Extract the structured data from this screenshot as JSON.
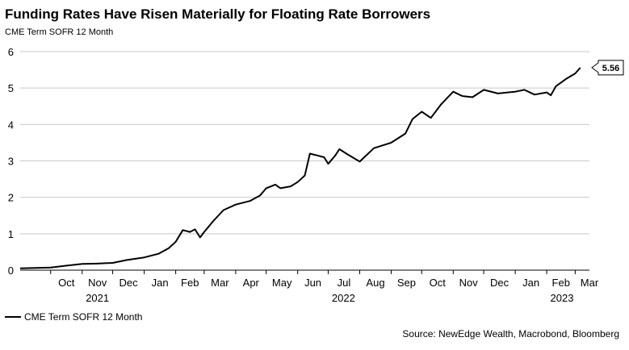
{
  "title": "Funding Rates Have Risen Materially for Floating Rate Borrowers",
  "subtitle": "CME Term SOFR 12 Month",
  "legend": {
    "label": "CME Term SOFR 12 Month"
  },
  "source": "Source: NewEdge Wealth, Macrobond, Bloomberg",
  "chart_data": {
    "type": "line",
    "title": "Funding Rates Have Risen Materially for Floating Rate Borrowers",
    "ylabel": "",
    "xlabel": "",
    "ylim": [
      0,
      6
    ],
    "yticks": [
      "0",
      "1",
      "2",
      "3",
      "4",
      "5",
      "6"
    ],
    "xlim": [
      "2021-09-01",
      "2023-03-15"
    ],
    "xticks": [
      {
        "label": "Oct",
        "date": "2021-10-01"
      },
      {
        "label": "Nov",
        "date": "2021-11-01"
      },
      {
        "label": "Dec",
        "date": "2021-12-01"
      },
      {
        "label": "Jan",
        "date": "2022-01-01"
      },
      {
        "label": "Feb",
        "date": "2022-02-01"
      },
      {
        "label": "Mar",
        "date": "2022-03-01"
      },
      {
        "label": "Apr",
        "date": "2022-04-01"
      },
      {
        "label": "May",
        "date": "2022-05-01"
      },
      {
        "label": "Jun",
        "date": "2022-06-01"
      },
      {
        "label": "Jul",
        "date": "2022-07-01"
      },
      {
        "label": "Aug",
        "date": "2022-08-01"
      },
      {
        "label": "Sep",
        "date": "2022-09-01"
      },
      {
        "label": "Oct",
        "date": "2022-10-01"
      },
      {
        "label": "Nov",
        "date": "2022-11-01"
      },
      {
        "label": "Dec",
        "date": "2022-12-01"
      },
      {
        "label": "Jan",
        "date": "2023-01-01"
      },
      {
        "label": "Feb",
        "date": "2023-02-01"
      },
      {
        "label": "Mar",
        "date": "2023-03-01"
      }
    ],
    "year_labels": [
      {
        "label": "2021",
        "date": "2021-11-01"
      },
      {
        "label": "2022",
        "date": "2022-07-01"
      },
      {
        "label": "2023",
        "date": "2023-02-01"
      }
    ],
    "grid": true,
    "legend_position": "bottom-left",
    "colors": {
      "line": "#000000",
      "grid": "#c8c8c8"
    },
    "end_label": "5.56",
    "series": [
      {
        "name": "CME Term SOFR 12 Month",
        "points": [
          [
            "2021-09-01",
            0.05
          ],
          [
            "2021-09-15",
            0.06
          ],
          [
            "2021-10-01",
            0.07
          ],
          [
            "2021-10-15",
            0.12
          ],
          [
            "2021-11-01",
            0.17
          ],
          [
            "2021-11-15",
            0.18
          ],
          [
            "2021-12-01",
            0.2
          ],
          [
            "2021-12-15",
            0.28
          ],
          [
            "2022-01-01",
            0.35
          ],
          [
            "2022-01-15",
            0.45
          ],
          [
            "2022-01-25",
            0.6
          ],
          [
            "2022-02-01",
            0.78
          ],
          [
            "2022-02-08",
            1.1
          ],
          [
            "2022-02-15",
            1.05
          ],
          [
            "2022-02-20",
            1.12
          ],
          [
            "2022-02-25",
            0.9
          ],
          [
            "2022-03-01",
            1.05
          ],
          [
            "2022-03-10",
            1.35
          ],
          [
            "2022-03-20",
            1.65
          ],
          [
            "2022-04-01",
            1.8
          ],
          [
            "2022-04-15",
            1.9
          ],
          [
            "2022-04-25",
            2.05
          ],
          [
            "2022-05-01",
            2.25
          ],
          [
            "2022-05-10",
            2.35
          ],
          [
            "2022-05-15",
            2.25
          ],
          [
            "2022-05-25",
            2.3
          ],
          [
            "2022-06-01",
            2.42
          ],
          [
            "2022-06-08",
            2.6
          ],
          [
            "2022-06-13",
            3.2
          ],
          [
            "2022-06-20",
            3.15
          ],
          [
            "2022-06-27",
            3.1
          ],
          [
            "2022-07-01",
            2.92
          ],
          [
            "2022-07-08",
            3.15
          ],
          [
            "2022-07-12",
            3.32
          ],
          [
            "2022-07-20",
            3.18
          ],
          [
            "2022-08-01",
            2.98
          ],
          [
            "2022-08-15",
            3.35
          ],
          [
            "2022-09-01",
            3.5
          ],
          [
            "2022-09-15",
            3.75
          ],
          [
            "2022-09-22",
            4.15
          ],
          [
            "2022-10-01",
            4.35
          ],
          [
            "2022-10-10",
            4.18
          ],
          [
            "2022-10-20",
            4.55
          ],
          [
            "2022-11-01",
            4.9
          ],
          [
            "2022-11-10",
            4.78
          ],
          [
            "2022-11-20",
            4.75
          ],
          [
            "2022-12-01",
            4.95
          ],
          [
            "2022-12-15",
            4.85
          ],
          [
            "2023-01-01",
            4.9
          ],
          [
            "2023-01-10",
            4.95
          ],
          [
            "2023-01-20",
            4.82
          ],
          [
            "2023-02-01",
            4.88
          ],
          [
            "2023-02-05",
            4.8
          ],
          [
            "2023-02-10",
            5.05
          ],
          [
            "2023-02-20",
            5.25
          ],
          [
            "2023-03-01",
            5.4
          ],
          [
            "2023-03-06",
            5.56
          ]
        ]
      }
    ]
  }
}
